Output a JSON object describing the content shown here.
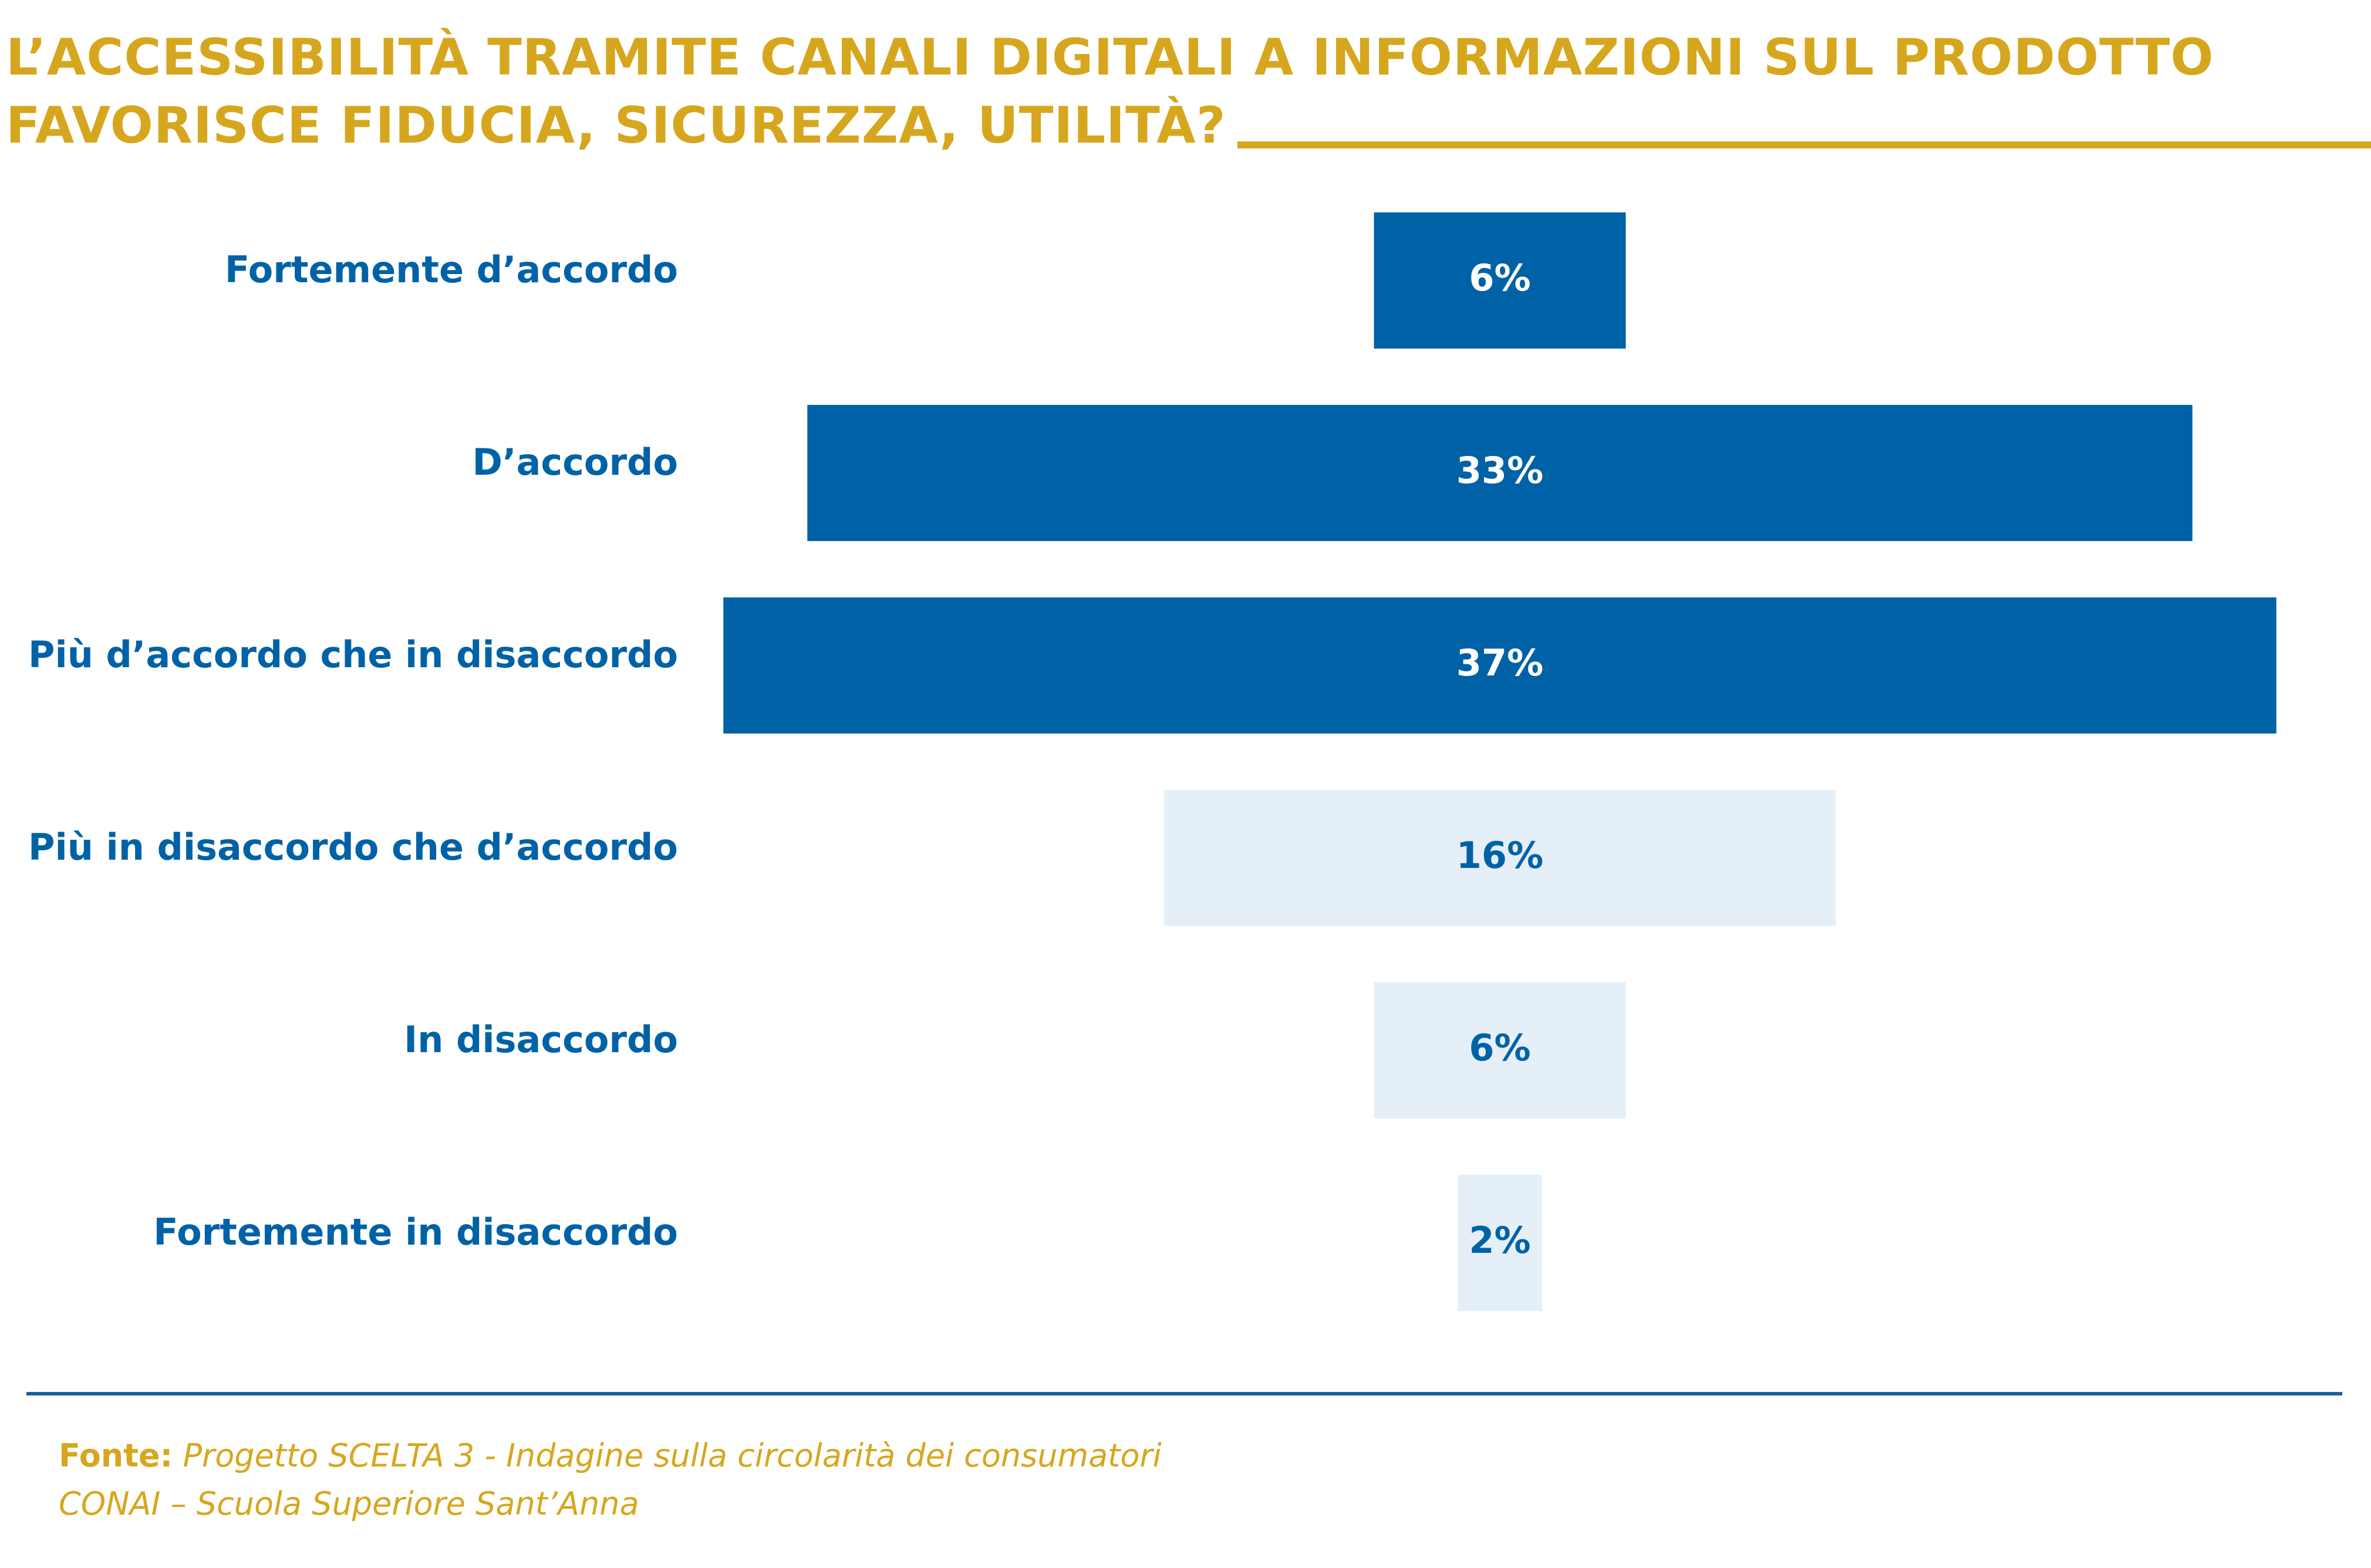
{
  "title": {
    "line1": "L’ACCESSIBILITÀ TRAMITE CANALI DIGITALI A INFORMAZIONI SUL PRODOTTO",
    "line2": "FAVORISCE FIDUCIA, SICUREZZA, UTILITÀ?"
  },
  "colors": {
    "accent_gold": "#d6a71e",
    "positive_bar": "#0062a6",
    "negative_bar": "#e4eff7",
    "category_text": "#0062a6"
  },
  "chart_data": {
    "type": "bar",
    "orientation": "horizontal-centered",
    "title": "L’ACCESSIBILITÀ TRAMITE CANALI DIGITALI A INFORMAZIONI SUL PRODOTTO FAVORISCE FIDUCIA, SICUREZZA, UTILITÀ?",
    "categories": [
      "Fortemente d’accordo",
      "D’accordo",
      "Più d’accordo che in disaccordo",
      "Più in disaccordo che d’accordo",
      "In disaccordo",
      "Fortemente in disaccordo"
    ],
    "values": [
      6,
      33,
      37,
      16,
      6,
      2
    ],
    "labels": [
      "6%",
      "33%",
      "37%",
      "16%",
      "6%",
      "2%"
    ],
    "sentiment": [
      "positive",
      "positive",
      "positive",
      "negative",
      "negative",
      "negative"
    ],
    "unit": "%",
    "xlabel": "",
    "ylabel": ""
  },
  "source": {
    "label": "Fonte:",
    "line1": "Progetto SCELTA 3 - Indagine sulla circolarità dei consumatori",
    "line2": "CONAI – Scuola Superiore Sant’Anna"
  }
}
